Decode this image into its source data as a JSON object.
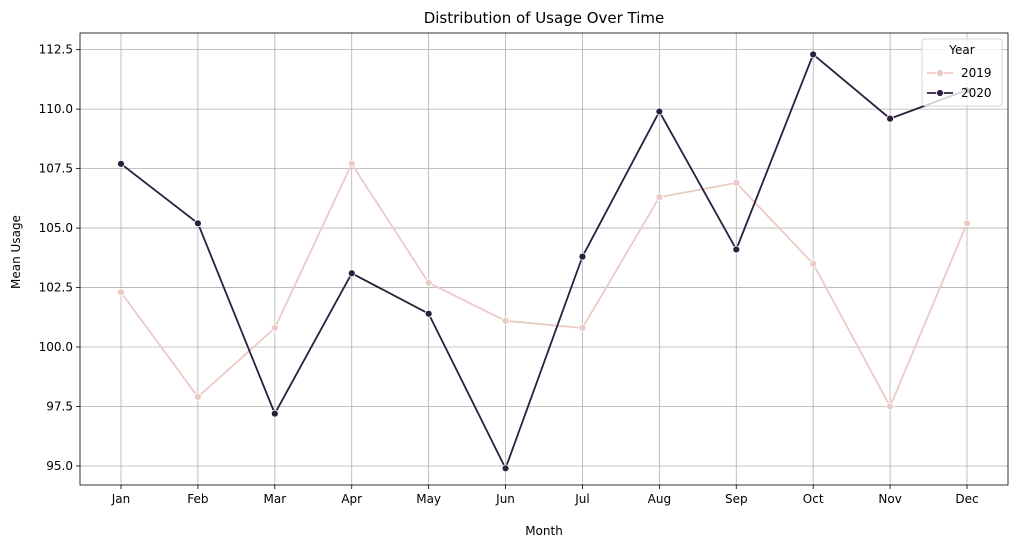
{
  "chart_data": {
    "type": "line",
    "title": "Distribution of Usage Over Time",
    "xlabel": "Month",
    "ylabel": "Mean Usage",
    "categories": [
      "Jan",
      "Feb",
      "Mar",
      "Apr",
      "May",
      "Jun",
      "Jul",
      "Aug",
      "Sep",
      "Oct",
      "Nov",
      "Dec"
    ],
    "ylim": [
      94.2,
      113.2
    ],
    "yticks": [
      95.0,
      97.5,
      100.0,
      102.5,
      105.0,
      107.5,
      110.0,
      112.5
    ],
    "ytick_labels": [
      "95.0",
      "97.5",
      "100.0",
      "102.5",
      "105.0",
      "107.5",
      "110.0",
      "112.5"
    ],
    "grid": true,
    "legend": {
      "title": "Year",
      "placement": "top-right"
    },
    "series": [
      {
        "name": "2019",
        "color": "#ebcbc3",
        "marker": "circle",
        "values": [
          102.3,
          97.9,
          100.8,
          107.7,
          102.7,
          101.1,
          100.8,
          106.3,
          106.9,
          103.5,
          97.5,
          105.2
        ]
      },
      {
        "name": "2020",
        "color": "#2c1e3d",
        "marker": "circle",
        "values": [
          107.7,
          105.2,
          97.2,
          103.1,
          101.4,
          94.9,
          103.8,
          109.9,
          104.1,
          112.3,
          109.6,
          110.8
        ]
      }
    ]
  }
}
